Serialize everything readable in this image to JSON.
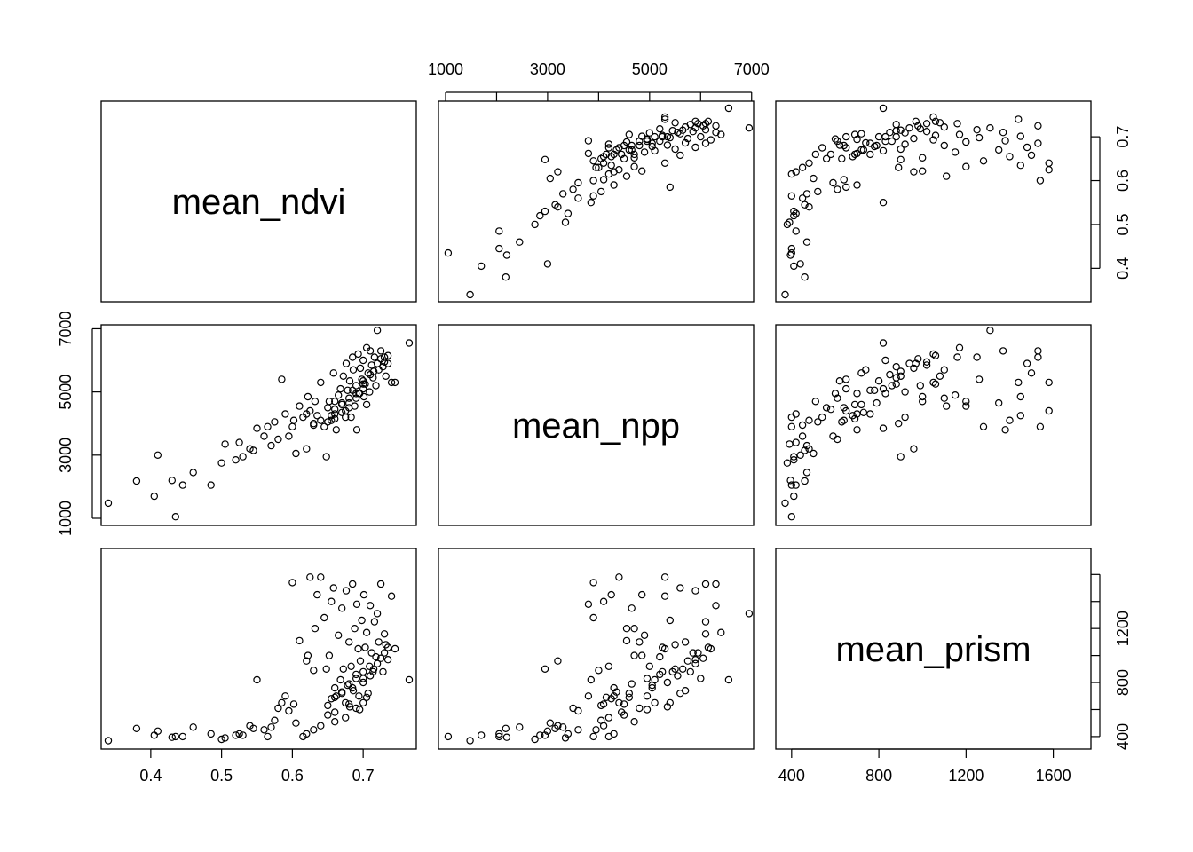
{
  "chart_data": {
    "type": "scatter",
    "kind": "scatterplot-matrix",
    "variables": [
      "mean_ndvi",
      "mean_npp",
      "mean_prism"
    ],
    "axes": {
      "mean_ndvi": {
        "range": [
          0.34,
          0.765
        ],
        "ticks": [
          0.4,
          0.5,
          0.6,
          0.7
        ],
        "tick_labels": [
          "0.4",
          "0.5",
          "0.6",
          "0.7"
        ]
      },
      "mean_npp": {
        "range": [
          1000,
          6900
        ],
        "ticks": [
          1000,
          3000,
          5000,
          7000
        ],
        "tick_labels": [
          "1000",
          "3000",
          "5000",
          "7000"
        ],
        "minor_ticks": [
          2000,
          4000,
          6000
        ]
      },
      "mean_prism": {
        "range": [
          360,
          1740
        ],
        "x_ticks": [
          400,
          800,
          1200,
          1600
        ],
        "x_tick_labels": [
          "400",
          "800",
          "1200",
          "1600"
        ],
        "y_ticks": [
          400,
          600,
          800,
          1000,
          1200,
          1400,
          1600
        ],
        "y_tick_labels": [
          "400",
          "",
          "800",
          "",
          "1200",
          "",
          ""
        ]
      }
    },
    "points": [
      [
        0.34,
        1480,
        370
      ],
      [
        0.435,
        1050,
        400
      ],
      [
        0.38,
        2180,
        460
      ],
      [
        0.405,
        1700,
        410
      ],
      [
        0.41,
        3000,
        440
      ],
      [
        0.43,
        2200,
        395
      ],
      [
        0.445,
        2050,
        400
      ],
      [
        0.46,
        2450,
        470
      ],
      [
        0.485,
        2050,
        420
      ],
      [
        0.5,
        2750,
        380
      ],
      [
        0.505,
        3350,
        390
      ],
      [
        0.52,
        2850,
        410
      ],
      [
        0.53,
        2950,
        410
      ],
      [
        0.525,
        3400,
        420
      ],
      [
        0.54,
        3200,
        480
      ],
      [
        0.545,
        3150,
        460
      ],
      [
        0.55,
        3850,
        820
      ],
      [
        0.56,
        3600,
        450
      ],
      [
        0.565,
        3900,
        400
      ],
      [
        0.57,
        3300,
        470
      ],
      [
        0.575,
        4050,
        520
      ],
      [
        0.58,
        3500,
        610
      ],
      [
        0.585,
        5400,
        650
      ],
      [
        0.59,
        4300,
        700
      ],
      [
        0.595,
        3600,
        590
      ],
      [
        0.6,
        3900,
        1540
      ],
      [
        0.602,
        4100,
        640
      ],
      [
        0.605,
        3050,
        500
      ],
      [
        0.61,
        4550,
        1110
      ],
      [
        0.615,
        4200,
        400
      ],
      [
        0.62,
        3200,
        960
      ],
      [
        0.622,
        4850,
        1000
      ],
      [
        0.625,
        4400,
        1580
      ],
      [
        0.63,
        4000,
        890
      ],
      [
        0.632,
        4700,
        1200
      ],
      [
        0.635,
        4250,
        1450
      ],
      [
        0.64,
        5300,
        1580
      ],
      [
        0.645,
        3900,
        1280
      ],
      [
        0.648,
        2950,
        900
      ],
      [
        0.65,
        4500,
        560
      ],
      [
        0.652,
        4700,
        1000
      ],
      [
        0.655,
        4100,
        1400
      ],
      [
        0.658,
        5600,
        1500
      ],
      [
        0.66,
        4300,
        760
      ],
      [
        0.662,
        3800,
        700
      ],
      [
        0.665,
        4900,
        1150
      ],
      [
        0.668,
        5100,
        820
      ],
      [
        0.67,
        4650,
        1350
      ],
      [
        0.672,
        5500,
        900
      ],
      [
        0.675,
        4400,
        650
      ],
      [
        0.676,
        5900,
        1480
      ],
      [
        0.678,
        5050,
        780
      ],
      [
        0.68,
        4800,
        1100
      ],
      [
        0.681,
        5350,
        620
      ],
      [
        0.683,
        4200,
        920
      ],
      [
        0.685,
        6100,
        1530
      ],
      [
        0.686,
        5700,
        740
      ],
      [
        0.688,
        4550,
        1200
      ],
      [
        0.69,
        5200,
        860
      ],
      [
        0.691,
        3800,
        1380
      ],
      [
        0.693,
        6200,
        1050
      ],
      [
        0.694,
        4950,
        700
      ],
      [
        0.696,
        5750,
        960
      ],
      [
        0.698,
        5400,
        1260
      ],
      [
        0.7,
        6000,
        830
      ],
      [
        0.701,
        4850,
        1450
      ],
      [
        0.703,
        5250,
        1060
      ],
      [
        0.705,
        6400,
        1170
      ],
      [
        0.707,
        5600,
        720
      ],
      [
        0.709,
        5000,
        920
      ],
      [
        0.71,
        6300,
        1370
      ],
      [
        0.712,
        5850,
        1020
      ],
      [
        0.714,
        5450,
        880
      ],
      [
        0.716,
        6100,
        1250
      ],
      [
        0.718,
        5200,
        990
      ],
      [
        0.72,
        6950,
        1310
      ],
      [
        0.722,
        5700,
        1100
      ],
      [
        0.725,
        6300,
        1530
      ],
      [
        0.728,
        5800,
        880
      ],
      [
        0.73,
        6100,
        1160
      ],
      [
        0.732,
        5500,
        1080
      ],
      [
        0.735,
        5900,
        970
      ],
      [
        0.74,
        5300,
        1440
      ],
      [
        0.745,
        5300,
        1050
      ],
      [
        0.765,
        6550,
        820
      ],
      [
        0.62,
        4300,
        420
      ],
      [
        0.63,
        3950,
        450
      ],
      [
        0.64,
        4100,
        480
      ],
      [
        0.66,
        4700,
        510
      ],
      [
        0.675,
        4200,
        540
      ],
      [
        0.69,
        4800,
        610
      ],
      [
        0.7,
        5100,
        650
      ],
      [
        0.705,
        4600,
        690
      ],
      [
        0.66,
        4450,
        580
      ],
      [
        0.68,
        4500,
        640
      ],
      [
        0.695,
        4950,
        600
      ],
      [
        0.655,
        4250,
        680
      ],
      [
        0.67,
        4600,
        720
      ],
      [
        0.685,
        5050,
        760
      ],
      [
        0.7,
        5350,
        800
      ],
      [
        0.71,
        5550,
        850
      ],
      [
        0.715,
        5650,
        900
      ],
      [
        0.72,
        5900,
        940
      ],
      [
        0.725,
        6050,
        980
      ],
      [
        0.73,
        5950,
        1020
      ],
      [
        0.735,
        6150,
        1060
      ],
      [
        0.7,
        5250,
        880
      ],
      [
        0.69,
        4950,
        830
      ],
      [
        0.68,
        4650,
        790
      ],
      [
        0.67,
        4350,
        730
      ],
      [
        0.66,
        4150,
        690
      ],
      [
        0.65,
        4050,
        630
      ]
    ]
  }
}
